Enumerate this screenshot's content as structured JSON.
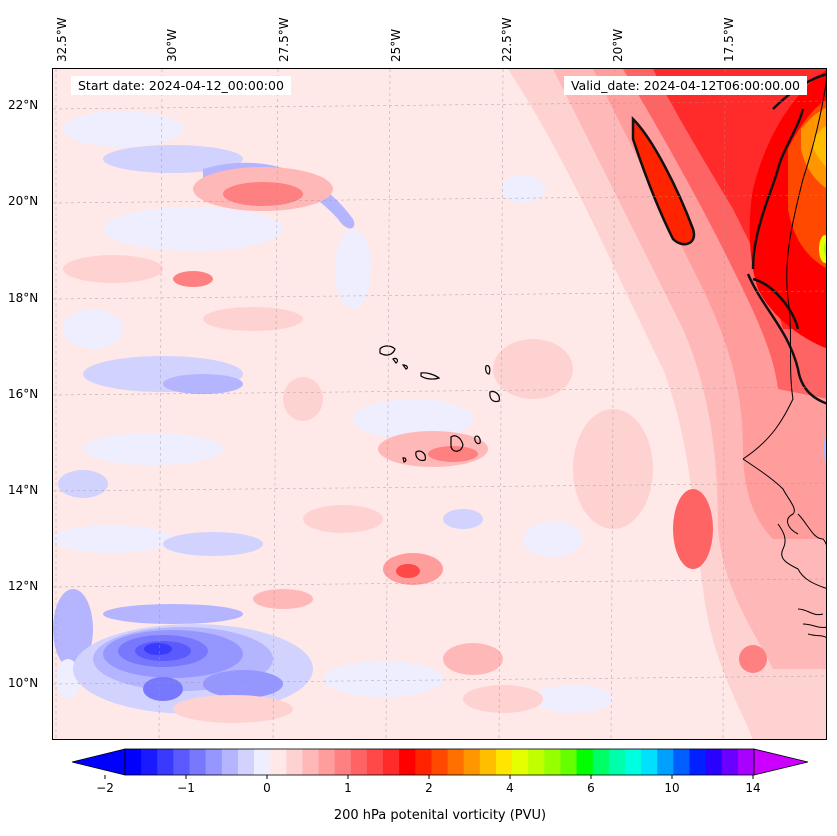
{
  "map": {
    "info": {
      "start_date": "Start date: 2024-04-12_00:00:00",
      "valid_date": "Valid_date: 2024-04-12T06:00:00.00"
    },
    "lon_labels": [
      "32.5°W",
      "30°W",
      "27.5°W",
      "25°W",
      "22.5°W",
      "20°W",
      "17.5°W"
    ],
    "lat_labels": [
      "22°N",
      "20°N",
      "18°N",
      "16°N",
      "14°N",
      "12°N",
      "10°N"
    ],
    "extent": {
      "lon_min": -32.8,
      "lon_max": -15.9,
      "lat_min": 8.9,
      "lat_max": 22.8
    },
    "projection": "plate carree",
    "gridlines": "dashed grey",
    "coastlines": true,
    "field": "200 hPa potential vorticity, filled contours with black contour line at 2 PVU"
  },
  "colorbar": {
    "label": "200 hPa potenital vorticity (PVU)",
    "tick_labels": [
      "−2",
      "−1",
      "0",
      "1",
      "2",
      "4",
      "6",
      "10",
      "14"
    ],
    "extend": "both",
    "colors": [
      "#0000ff",
      "#1a1aff",
      "#3a3aff",
      "#5a5aff",
      "#7878ff",
      "#9696ff",
      "#b4b4ff",
      "#d2d2ff",
      "#eeeeff",
      "#ffe8e8",
      "#ffd2d2",
      "#ffb8b8",
      "#ff9c9c",
      "#ff8080",
      "#ff6464",
      "#ff4848",
      "#ff2a2a",
      "#ff0000",
      "#ff2400",
      "#ff4800",
      "#ff7000",
      "#ff9600",
      "#ffbe00",
      "#ffe600",
      "#e6ff00",
      "#bfff00",
      "#96ff00",
      "#64ff00",
      "#00ff00",
      "#00ff64",
      "#00ffaa",
      "#00ffe0",
      "#00e0ff",
      "#00a0ff",
      "#0060ff",
      "#0020ff",
      "#2a00ff",
      "#6a00ff",
      "#aa00ff"
    ],
    "end_colors": {
      "low": "#0000ff",
      "high": "#cc00ff"
    }
  }
}
